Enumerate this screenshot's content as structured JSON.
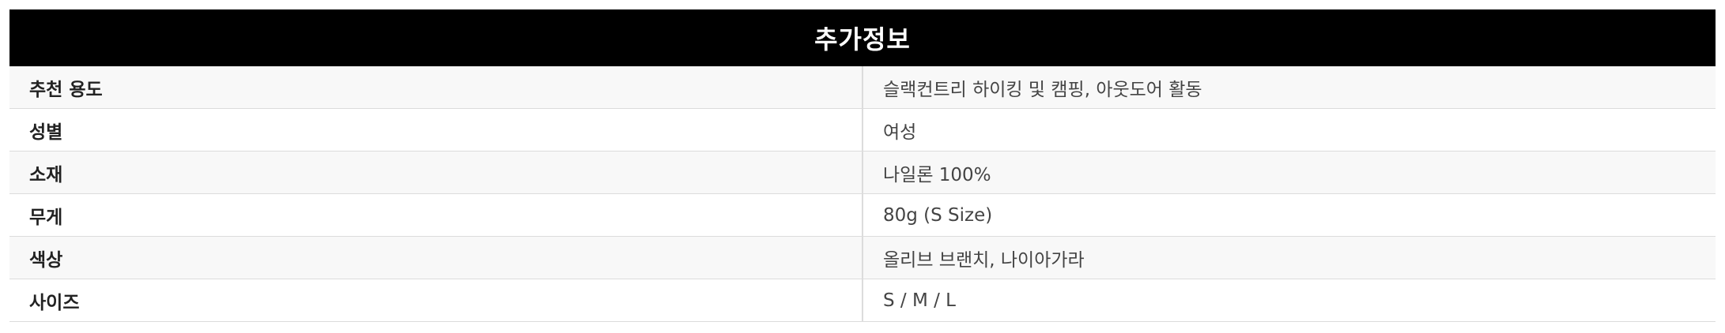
{
  "header": {
    "title": "추가정보"
  },
  "rows": [
    {
      "label": "추천 용도",
      "value": "슬랙컨트리 하이킹 및 캠핑, 아웃도어 활동"
    },
    {
      "label": "성별",
      "value": "여성"
    },
    {
      "label": "소재",
      "value": "나일론 100%"
    },
    {
      "label": "무게",
      "value": "80g (S Size)"
    },
    {
      "label": "색상",
      "value": "올리브 브랜치, 나이아가라"
    },
    {
      "label": "사이즈",
      "value": "S / M / L"
    }
  ]
}
